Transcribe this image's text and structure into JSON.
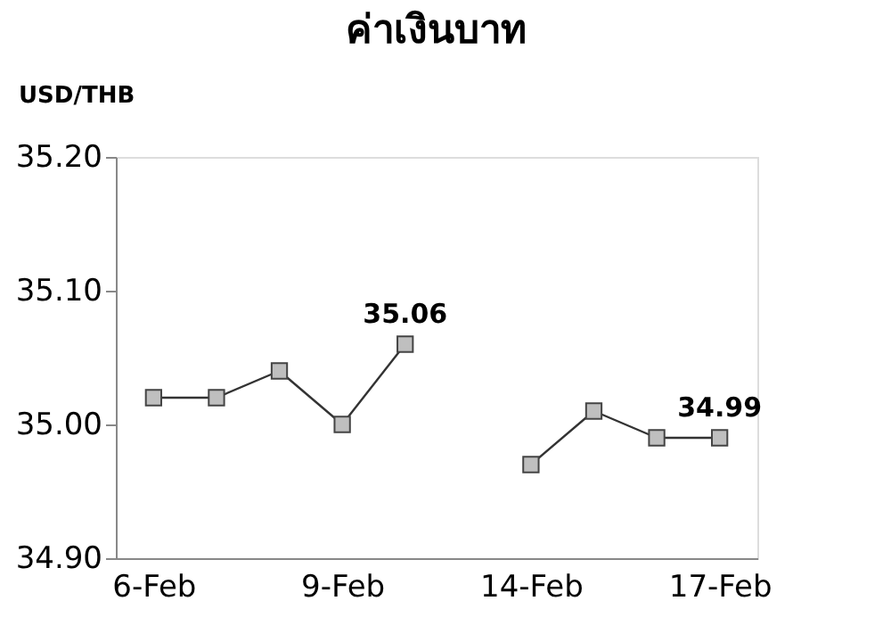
{
  "chart_data": {
    "type": "line",
    "title": "ค่าเงินบาท",
    "ylabel": "USD/THB",
    "categories": [
      "6-Feb",
      null,
      null,
      "9-Feb",
      null,
      null,
      "14-Feb",
      null,
      null,
      "17-Feb"
    ],
    "series": [
      {
        "color": "#bfbfbf",
        "values": [
          35.02,
          35.02,
          35.04,
          35.0,
          35.06,
          null,
          34.97,
          35.01,
          34.99,
          34.99
        ],
        "value_labels": [
          null,
          null,
          null,
          null,
          "35.06",
          null,
          null,
          null,
          null,
          "34.99"
        ]
      }
    ],
    "ylim": [
      34.9,
      35.2
    ],
    "yticks": [
      {
        "value": 34.9,
        "label": "34.90"
      },
      {
        "value": 35.0,
        "label": "35.00"
      },
      {
        "value": 35.1,
        "label": "35.10"
      },
      {
        "value": 35.2,
        "label": "35.20"
      }
    ],
    "marker": "square",
    "line_style": "solid",
    "grid": false
  }
}
